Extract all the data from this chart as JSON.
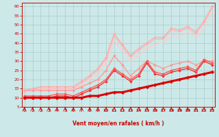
{
  "title": "",
  "xlabel": "Vent moyen/en rafales ( km/h )",
  "bg_color": "#cce8e8",
  "grid_color": "#aacccc",
  "x_ticks": [
    0,
    1,
    2,
    3,
    4,
    5,
    6,
    7,
    8,
    9,
    10,
    11,
    12,
    13,
    14,
    15,
    16,
    17,
    18,
    19,
    20,
    21,
    22,
    23
  ],
  "y_ticks": [
    5,
    10,
    15,
    20,
    25,
    30,
    35,
    40,
    45,
    50,
    55,
    60
  ],
  "xlim": [
    -0.3,
    23.3
  ],
  "ylim": [
    5,
    62
  ],
  "series": [
    {
      "x": [
        0,
        1,
        2,
        3,
        4,
        5,
        6,
        7,
        8,
        9,
        10,
        11,
        12,
        13,
        14,
        15,
        16,
        17,
        18,
        19,
        20,
        21,
        22,
        23
      ],
      "y": [
        10,
        10,
        10,
        10,
        10,
        10,
        10,
        10,
        11,
        11,
        12,
        13,
        13,
        14,
        15,
        16,
        17,
        18,
        19,
        20,
        21,
        22,
        23,
        24
      ],
      "color": "#dd0000",
      "lw": 2.2,
      "marker": "D",
      "ms": 2.5,
      "zorder": 5
    },
    {
      "x": [
        0,
        1,
        2,
        3,
        4,
        5,
        6,
        7,
        8,
        9,
        10,
        11,
        12,
        13,
        14,
        15,
        16,
        17,
        18,
        19,
        20,
        21,
        22,
        23
      ],
      "y": [
        10,
        10,
        10,
        10,
        11,
        11,
        10,
        12,
        14,
        16,
        19,
        25,
        22,
        19,
        22,
        29,
        23,
        22,
        24,
        25,
        26,
        24,
        30,
        28
      ],
      "color": "#ee3333",
      "lw": 1.0,
      "marker": "D",
      "ms": 2.0,
      "zorder": 4
    },
    {
      "x": [
        0,
        1,
        2,
        3,
        4,
        5,
        6,
        7,
        8,
        9,
        10,
        11,
        12,
        13,
        14,
        15,
        16,
        17,
        18,
        19,
        20,
        21,
        22,
        23
      ],
      "y": [
        11,
        11,
        11,
        11,
        12,
        12,
        11,
        13,
        15,
        17,
        20,
        26,
        23,
        20,
        23,
        30,
        24,
        23,
        25,
        26,
        27,
        25,
        31,
        29
      ],
      "color": "#ff5555",
      "lw": 1.0,
      "marker": "D",
      "ms": 2.0,
      "zorder": 4
    },
    {
      "x": [
        0,
        1,
        2,
        3,
        4,
        5,
        6,
        7,
        8,
        9,
        10,
        11,
        12,
        13,
        14,
        15,
        16,
        17,
        18,
        19,
        20,
        21,
        22,
        23
      ],
      "y": [
        14,
        14,
        14,
        14,
        14,
        14,
        14,
        16,
        18,
        20,
        25,
        33,
        28,
        22,
        26,
        30,
        28,
        26,
        28,
        29,
        30,
        28,
        30,
        30
      ],
      "color": "#ff9999",
      "lw": 1.0,
      "marker": "D",
      "ms": 2.0,
      "zorder": 3
    },
    {
      "x": [
        0,
        1,
        2,
        3,
        4,
        5,
        6,
        7,
        8,
        9,
        10,
        11,
        12,
        13,
        14,
        15,
        16,
        17,
        18,
        19,
        20,
        21,
        22,
        23
      ],
      "y": [
        14,
        15,
        16,
        16,
        16,
        16,
        16,
        19,
        22,
        26,
        32,
        45,
        39,
        33,
        37,
        40,
        43,
        43,
        48,
        47,
        49,
        46,
        52,
        60
      ],
      "color": "#ffaaaa",
      "lw": 1.0,
      "marker": "D",
      "ms": 1.8,
      "zorder": 3
    },
    {
      "x": [
        0,
        1,
        2,
        3,
        4,
        5,
        6,
        7,
        8,
        9,
        10,
        11,
        12,
        13,
        14,
        15,
        16,
        17,
        18,
        19,
        20,
        21,
        22,
        23
      ],
      "y": [
        13,
        14,
        15,
        15,
        15,
        15,
        15,
        18,
        21,
        25,
        31,
        44,
        38,
        32,
        36,
        39,
        42,
        42,
        47,
        46,
        48,
        45,
        51,
        59
      ],
      "color": "#ffbbbb",
      "lw": 1.0,
      "marker": null,
      "ms": 0,
      "zorder": 2
    },
    {
      "x": [
        0,
        1,
        2,
        3,
        4,
        5,
        6,
        7,
        8,
        9,
        10,
        11,
        12,
        13,
        14,
        15,
        16,
        17,
        18,
        19,
        20,
        21,
        22,
        23
      ],
      "y": [
        13,
        14,
        14,
        14,
        14,
        14,
        14,
        17,
        20,
        23,
        29,
        41,
        36,
        30,
        33,
        37,
        39,
        40,
        44,
        43,
        46,
        43,
        48,
        57
      ],
      "color": "#ffcccc",
      "lw": 1.0,
      "marker": null,
      "ms": 0,
      "zorder": 2
    }
  ]
}
